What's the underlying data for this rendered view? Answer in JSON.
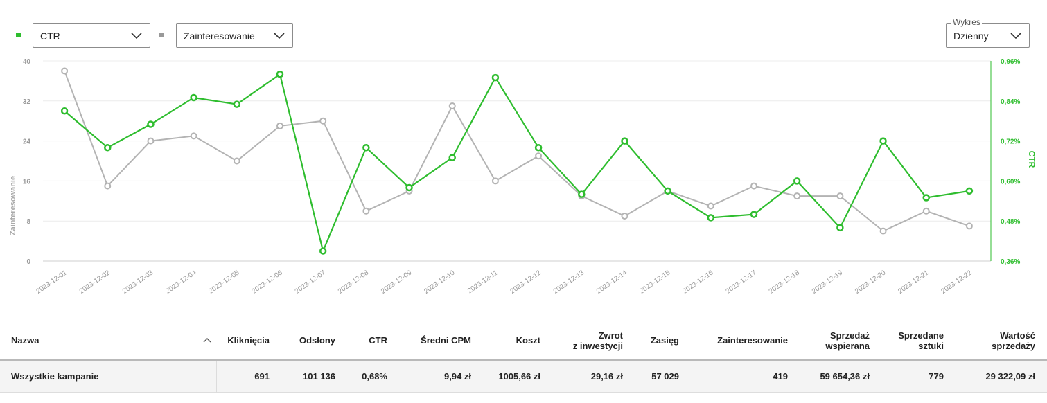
{
  "controls": {
    "metric1": {
      "value": "CTR",
      "color": "#2ebd2e"
    },
    "metric2": {
      "value": "Zainteresowanie",
      "color": "#999999"
    },
    "period": {
      "legend": "Wykres",
      "value": "Dzienny"
    }
  },
  "chart_data": {
    "type": "line",
    "x": [
      "2023-12-01",
      "2023-12-02",
      "2023-12-03",
      "2023-12-04",
      "2023-12-05",
      "2023-12-06",
      "2023-12-07",
      "2023-12-08",
      "2023-12-09",
      "2023-12-10",
      "2023-12-11",
      "2023-12-12",
      "2023-12-13",
      "2023-12-14",
      "2023-12-15",
      "2023-12-16",
      "2023-12-17",
      "2023-12-18",
      "2023-12-19",
      "2023-12-20",
      "2023-12-21",
      "2023-12-22"
    ],
    "y_left": {
      "label": "Zainteresowanie",
      "ticks": [
        "0",
        "8",
        "16",
        "24",
        "32",
        "40"
      ],
      "range": [
        0,
        40
      ]
    },
    "y_right": {
      "label": "CTR",
      "ticks": [
        "0,36%",
        "0,48%",
        "0,60%",
        "0,72%",
        "0,84%",
        "0,96%"
      ],
      "range": [
        0.36,
        0.96
      ]
    },
    "series": [
      {
        "axis": "right",
        "color": "#2ebd2e",
        "values": [
          0.81,
          0.7,
          0.77,
          0.85,
          0.83,
          0.92,
          0.39,
          0.7,
          0.58,
          0.67,
          0.91,
          0.7,
          0.56,
          0.72,
          0.57,
          0.49,
          0.5,
          0.6,
          0.46,
          0.72,
          0.55,
          0.57
        ]
      },
      {
        "axis": "left",
        "color": "#b3b3b3",
        "values": [
          38,
          15,
          24,
          25,
          20,
          27,
          28,
          10,
          14,
          31,
          16,
          21,
          13,
          9,
          14,
          11,
          15,
          13,
          13,
          6,
          10,
          7
        ]
      }
    ],
    "grid": true
  },
  "table": {
    "columns": [
      {
        "label": "Nazwa"
      },
      {
        "label": "Kliknięcia"
      },
      {
        "label": "Odsłony"
      },
      {
        "label": "CTR"
      },
      {
        "label": "Średni CPM"
      },
      {
        "label": "Koszt"
      },
      {
        "label1": "Zwrot",
        "label2": "z inwestycji"
      },
      {
        "label": "Zasięg"
      },
      {
        "label": "Zainteresowanie"
      },
      {
        "label1": "Sprzedaż",
        "label2": "wspierana"
      },
      {
        "label1": "Sprzedane",
        "label2": "sztuki"
      },
      {
        "label1": "Wartość",
        "label2": "sprzedaży"
      }
    ],
    "rows": [
      {
        "name": "Wszystkie kampanie",
        "clicks": "691",
        "views": "101 136",
        "ctr": "0,68%",
        "cpm": "9,94 zł",
        "cost": "1005,66 zł",
        "roi": "29,16 zł",
        "reach": "57 029",
        "interest": "419",
        "assisted_sales": "59 654,36 zł",
        "units_sold": "779",
        "sales_value": "29 322,09 zł"
      }
    ]
  }
}
